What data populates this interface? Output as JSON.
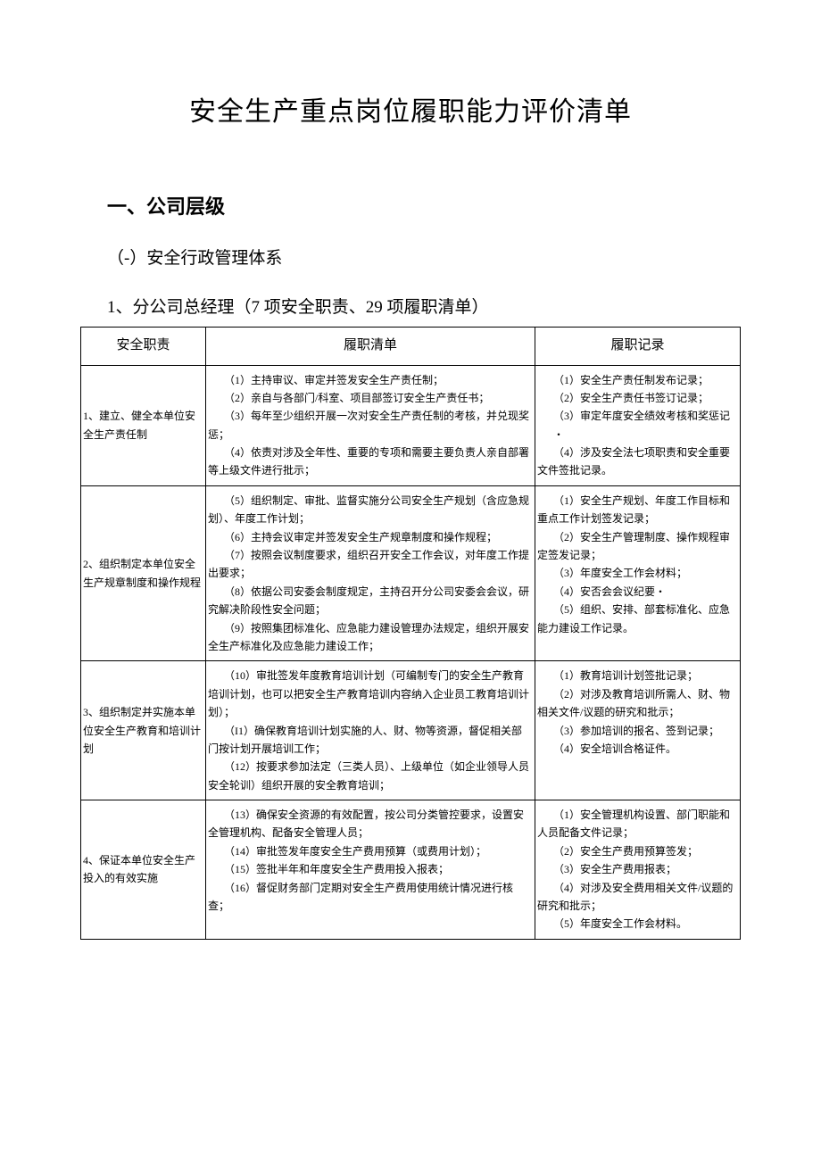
{
  "title": "安全生产重点岗位履职能力评价清单",
  "section1": "一、公司层级",
  "section1_1": "（-）安全行政管理体系",
  "section1_1_1": "1、分公司总经理（7 项安全职责、29 项履职清单）",
  "table": {
    "headers": {
      "duty": "安全职责",
      "list": "履职清单",
      "record": "履职记录"
    },
    "rows": [
      {
        "duty": "1、建立、健全本单位安全生产责任制",
        "list": [
          "（1）主持审议、审定并签发安全生产责任制；",
          "（2）亲自与各部门/科室、项目部签订安全生产责任书；",
          "（3）每年至少组织开展一次对安全生产责任制的考核，并兑现奖惩；",
          "（4）依责对涉及全年性、重要的专项和需要主要负责人亲自部署等上级文件进行批示；"
        ],
        "record": [
          "（1）安全生产责任制发布记录；",
          "（2）安全生产责任书签订记录；",
          "（3）审定年度安全绩效考核和奖惩记",
          "・",
          "（4）涉及安全法七项职责和安全重要文件签批记录。"
        ]
      },
      {
        "duty": "2、组织制定本单位安全生产规章制度和操作规程",
        "list": [
          "（5）组织制定、审批、监督实施分公司安全生产规划（含应急规划）、年度工作计划；",
          "（6）主持会议审定并签发安全生产规章制度和操作规程；",
          "（7）按照会议制度要求，组织召开安全工作会议，对年度工作提出要求；",
          "（8）依据公司安委会制度规定，主持召开分公司安委会会议，研究解决阶段性安全问题；",
          "（9）按照集团标准化、应急能力建设管理办法规定，组织开展安全生产标准化及应急能力建设工作；"
        ],
        "record": [
          "（1）安全生产规划、年度工作目标和重点工作计划签发记录；",
          "（2）安全生产管理制度、操作规程审定签发记录；",
          "（3）年度安全工作会材料；",
          "（4）安否会会议纪要・",
          "（5）组织、安排、部套标准化、应急能力建设工作记录。"
        ]
      },
      {
        "duty": "3、组织制定并实施本单位安全生产教育和培训计划",
        "list": [
          "（10）审批签发年度教育培训计划（可编制专门的安全生产教育培训计划，也可以把安全生产教育培训内容纳入企业员工教育培训计划）；",
          "（I1）确保教育培训计划实施的人、财、物等资源，督促相关部门按计划开展培训工作；",
          "（12）按要求参加法定（三类人员）、上级单位（如企业领导人员安全轮训）组织开展的安全教育培训；"
        ],
        "record": [
          "（1）教育培训计划签批记录；",
          "（2）对涉及教育培训所需人、财、物相关文件/议题的研究和批示；",
          "（3）参加培训的报名、签到记录；",
          "（4）安全培训合格证件。"
        ]
      },
      {
        "duty": "4、保证本单位安全生产投入的有效实施",
        "list": [
          "（13）确保安全资源的有效配置，按公司分类管控要求，设置安全管理机构、配备安全管理人员；",
          "（14）审批签发年度安全生产费用预算（或费用计划）；",
          "（15）签批半年和年度安全生产费用投入报表；",
          "（16）督促财务部门定期对安全生产费用使用统计情况进行核查；"
        ],
        "record": [
          "（1）安全管理机构设置、部门职能和人员配备文件记录；",
          "（2）安全生产费用预算签发；",
          "（3）安全生产费用报表；",
          "（4）对涉及安全费用相关文件/议题的研究和批示；",
          "（5）年度安全工作会材料。"
        ]
      }
    ]
  }
}
